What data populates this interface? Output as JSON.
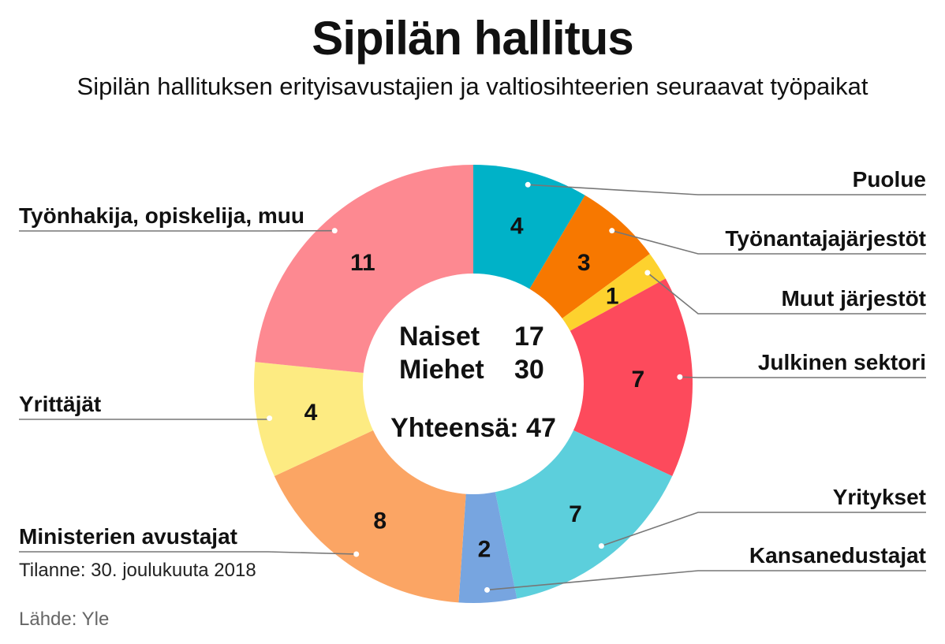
{
  "header": {
    "title": "Sipilän hallitus",
    "subtitle": "Sipilän hallituksen erityisavustajien ja valtiosihteerien seuraavat työpaikat"
  },
  "center": {
    "women_label": "Naiset",
    "women_value": "17",
    "men_label": "Miehet",
    "men_value": "30",
    "total_text": "Yhteensä: 47"
  },
  "footer": {
    "note": "Tilanne: 30. joulukuuta 2018",
    "source": "Lähde: Yle"
  },
  "chart_data": {
    "type": "pie",
    "donut": true,
    "total": 47,
    "slices": [
      {
        "label": "Puolue",
        "value": 4,
        "color": "#00b2c8",
        "side": "right"
      },
      {
        "label": "Työnantajajärjestöt",
        "value": 3,
        "color": "#f77800",
        "side": "right"
      },
      {
        "label": "Muut järjestöt",
        "value": 1,
        "color": "#fdd22e",
        "side": "right"
      },
      {
        "label": "Julkinen sektori",
        "value": 7,
        "color": "#fd4a5c",
        "side": "right"
      },
      {
        "label": "Yritykset",
        "value": 7,
        "color": "#5ccfdc",
        "side": "right"
      },
      {
        "label": "Kansanedustajat",
        "value": 2,
        "color": "#77a5e0",
        "side": "right"
      },
      {
        "label": "Ministerien avustajat",
        "value": 8,
        "color": "#fba564",
        "side": "left"
      },
      {
        "label": "Yrittäjät",
        "value": 4,
        "color": "#fdeb82",
        "side": "left"
      },
      {
        "label": "Työnhakija, opiskelija, muu",
        "value": 11,
        "color": "#fd8991",
        "side": "left"
      }
    ]
  }
}
